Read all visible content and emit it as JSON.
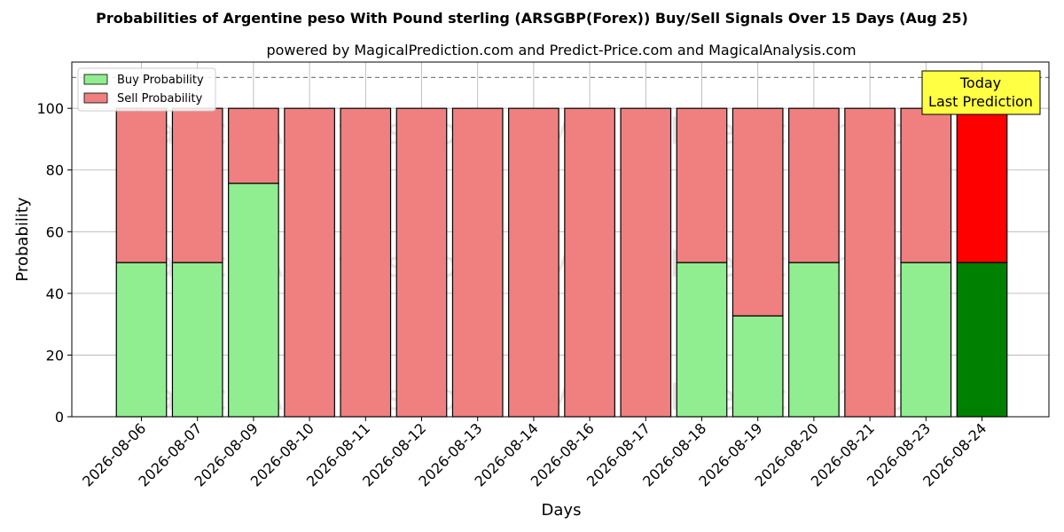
{
  "chart_data": {
    "type": "bar",
    "stacked": true,
    "title": "Probabilities of Argentine peso With Pound sterling (ARSGBP(Forex)) Buy/Sell Signals Over 15 Days (Aug 25)",
    "subtitle": "powered by MagicalPrediction.com and Predict-Price.com and MagicalAnalysis.com",
    "xlabel": "Days",
    "ylabel": "Probability",
    "ylim": [
      0,
      115
    ],
    "yticks": [
      0,
      20,
      40,
      60,
      80,
      100
    ],
    "reference_line": 110,
    "grid": true,
    "legend_position": "top-left",
    "categories": [
      "2026-08-06",
      "2026-08-07",
      "2026-08-09",
      "2026-08-10",
      "2026-08-11",
      "2026-08-12",
      "2026-08-13",
      "2026-08-14",
      "2026-08-16",
      "2026-08-17",
      "2026-08-18",
      "2026-08-19",
      "2026-08-20",
      "2026-08-21",
      "2026-08-23",
      "2026-08-24"
    ],
    "series": [
      {
        "name": "Buy Probability",
        "color": "#90ee90",
        "highlight_color": "#008000",
        "values": [
          50,
          50,
          75.7,
          0,
          0,
          0,
          0,
          0,
          0,
          0,
          50,
          32.7,
          50,
          0,
          50,
          50
        ]
      },
      {
        "name": "Sell Probability",
        "color": "#f08080",
        "highlight_color": "#ff0000",
        "values": [
          50,
          50,
          24.3,
          100,
          100,
          100,
          100,
          100,
          100,
          100,
          50,
          67.3,
          50,
          100,
          50,
          50
        ]
      }
    ],
    "highlight_index": 15,
    "annotation": {
      "line1": "Today",
      "line2": "Last Prediction",
      "background": "#ffff44"
    },
    "watermarks": [
      "MagicalAnalysis.com",
      "MagicalPrediction.com"
    ]
  }
}
